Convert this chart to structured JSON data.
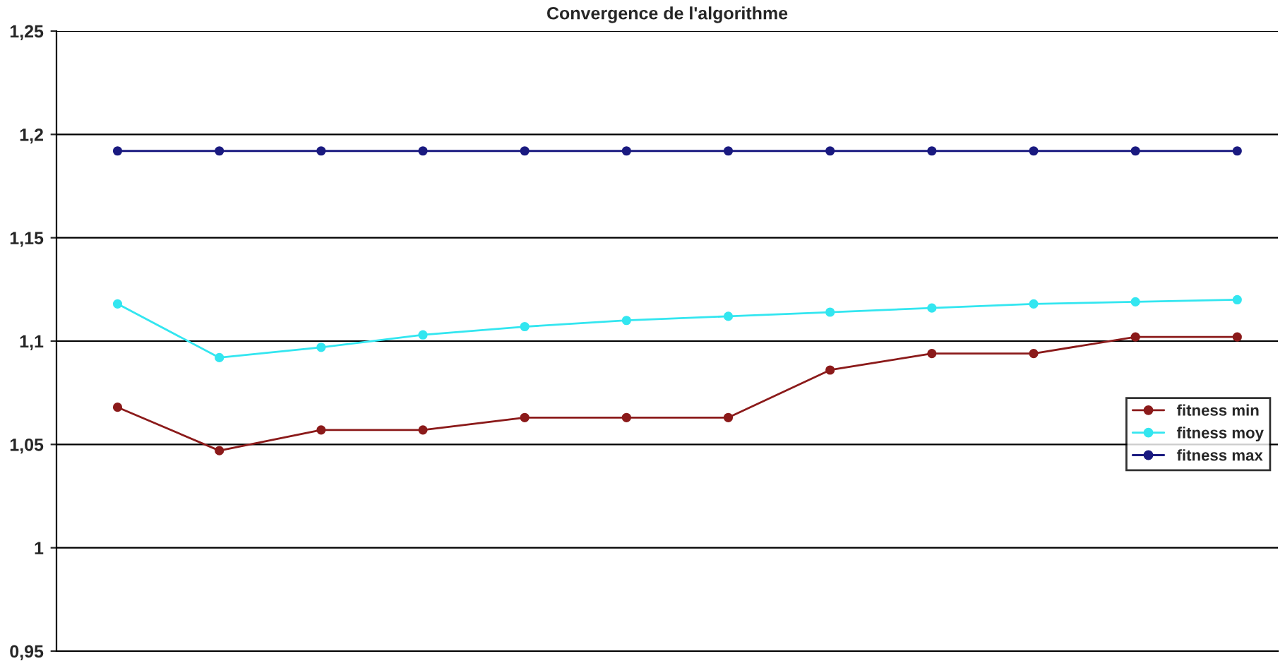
{
  "chart_data": {
    "type": "line",
    "title": "Convergence de l'algorithme",
    "categories": [
      null,
      null,
      null,
      null,
      null,
      null,
      null,
      null,
      null,
      null,
      null,
      null
    ],
    "series": [
      {
        "name": "fitness min",
        "color": "#8b1a1a",
        "values": [
          1.068,
          1.047,
          1.057,
          1.057,
          1.063,
          1.063,
          1.063,
          1.086,
          1.094,
          1.094,
          1.102,
          1.102
        ]
      },
      {
        "name": "fitness moy",
        "color": "#33e6f0",
        "values": [
          1.118,
          1.092,
          1.097,
          1.103,
          1.107,
          1.11,
          1.112,
          1.114,
          1.116,
          1.118,
          1.119,
          1.12
        ]
      },
      {
        "name": "fitness max",
        "color": "#1a1a80",
        "values": [
          1.192,
          1.192,
          1.192,
          1.192,
          1.192,
          1.192,
          1.192,
          1.192,
          1.192,
          1.192,
          1.192,
          1.192
        ]
      }
    ],
    "ylim": [
      0.95,
      1.25
    ],
    "yticks": [
      {
        "value": 0.95,
        "label": "0,95"
      },
      {
        "value": 1,
        "label": "1"
      },
      {
        "value": 1.05,
        "label": "1,05"
      },
      {
        "value": 1.1,
        "label": "1,1"
      },
      {
        "value": 1.15,
        "label": "1,15"
      },
      {
        "value": 1.2,
        "label": "1,2"
      },
      {
        "value": 1.25,
        "label": "1,25"
      }
    ],
    "grid": "y",
    "legend": "right",
    "marker": "circle",
    "line_style": "solid"
  }
}
